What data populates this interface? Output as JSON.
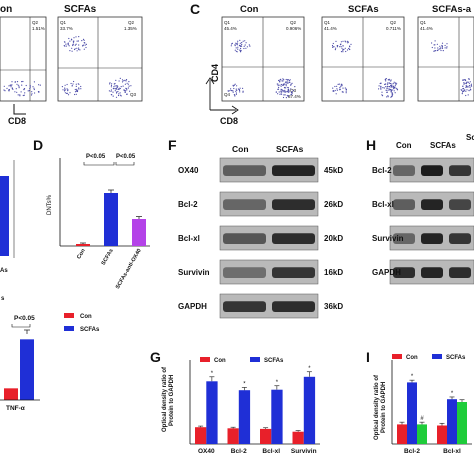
{
  "panels": {
    "B_partial": {
      "labels": [
        "Con",
        "SCFAs"
      ],
      "xlabel": "CD8",
      "gate_values": [
        {
          "q": "Q1",
          "v": "1.51%"
        },
        {
          "q": "Q1",
          "v": "33.7%"
        },
        {
          "q": "Q2",
          "v": "1.35%"
        },
        {
          "q": "Q3",
          "v": "Q3"
        }
      ]
    },
    "C": {
      "letter": "C",
      "labels": [
        "Con",
        "SCFAs",
        "SCFAs-a"
      ],
      "ylabel": "CD4",
      "xlabel": "CD8",
      "gates": [
        [
          "Q1",
          "Q2",
          "Q4",
          "Q3",
          "45.4%",
          "0.906%",
          "87.4%"
        ],
        [
          "Q1",
          "Q2",
          "Q4",
          "Q3",
          "41.4%",
          "0.711%"
        ],
        [
          "Q1",
          "Q2",
          "Q4",
          "Q3",
          "41.4%"
        ]
      ]
    },
    "D": {
      "letter": "D",
      "ylabel": "DNTs%",
      "sig": [
        "P<0.05",
        "P<0.05"
      ],
      "categories": [
        "Con",
        "SCFAs",
        "SCFAs-anti-OX40"
      ]
    },
    "F": {
      "letter": "F",
      "cols": [
        "Con",
        "SCFAs"
      ],
      "rows": [
        {
          "name": "OX40",
          "kd": "45kD"
        },
        {
          "name": "Bcl-2",
          "kd": "26kD"
        },
        {
          "name": "Bcl-xl",
          "kd": "20kD"
        },
        {
          "name": "Survivin",
          "kd": "16kD"
        },
        {
          "name": "GAPDH",
          "kd": "36kD"
        }
      ]
    },
    "H": {
      "letter": "H",
      "cols": [
        "Con",
        "SCFAs",
        "Sc"
      ],
      "rows": [
        "Bcl-2",
        "Bcl-xl",
        "Survivin",
        "GAPDH"
      ]
    },
    "E_partial": {
      "sig": "P<0.05",
      "xlabel": "TNF-α",
      "partial": "s",
      "legend": [
        "Con",
        "SCFAs"
      ],
      "cut_label": "As"
    },
    "G": {
      "letter": "G",
      "ylabel": "Optical density ratio of\nProtein to GAPDH",
      "legend": [
        "Con",
        "SCFAs"
      ],
      "star": "*"
    },
    "I": {
      "letter": "I",
      "ylabel": "Optical density ratio of\nProtein to GAPDH",
      "legend": [
        "Con",
        "SCFAs"
      ],
      "star": "*",
      "hash": "#"
    }
  },
  "colors": {
    "con": "#e8202a",
    "scfas": "#1f2fd6",
    "anti": "#b443e8",
    "green": "#1ecc3a",
    "dot": "#4b4ba8"
  },
  "chart_data": [
    {
      "panel": "D",
      "type": "bar",
      "categories": [
        "Con",
        "SCFAs",
        "SCFAs-anti-OX40"
      ],
      "values": [
        1,
        26.5,
        13.5
      ],
      "errors": [
        0.5,
        1.5,
        1.2
      ],
      "ylabel": "DNTs%",
      "ylim": [
        0,
        40
      ]
    },
    {
      "panel": "E_partial",
      "type": "bar",
      "categories": [
        "TNF-α"
      ],
      "series": [
        {
          "name": "Con",
          "values": [
            1
          ]
        },
        {
          "name": "SCFAs",
          "values": [
            5.2
          ]
        }
      ],
      "ylim": [
        0,
        6
      ]
    },
    {
      "panel": "G",
      "type": "bar",
      "categories": [
        "OX40",
        "Bcl-2",
        "Bcl-xl",
        "Survivin"
      ],
      "ylim": [
        0,
        1.5
      ],
      "series": [
        {
          "name": "Con",
          "values": [
            0.3,
            0.28,
            0.27,
            0.22
          ]
        },
        {
          "name": "SCFAs",
          "values": [
            1.12,
            0.96,
            0.97,
            1.2
          ]
        }
      ],
      "errors": [
        [
          0.02,
          0.02,
          0.02,
          0.02
        ],
        [
          0.08,
          0.05,
          0.07,
          0.09
        ]
      ]
    },
    {
      "panel": "I",
      "type": "bar",
      "categories": [
        "Bcl-2",
        "Bcl-xl"
      ],
      "ylim": [
        0,
        1.5
      ],
      "series": [
        {
          "name": "Con",
          "values": [
            0.35,
            0.33
          ]
        },
        {
          "name": "SCFAs",
          "values": [
            1.1,
            0.8
          ]
        },
        {
          "name": "",
          "values": [
            0.35,
            0.75
          ]
        }
      ]
    }
  ]
}
